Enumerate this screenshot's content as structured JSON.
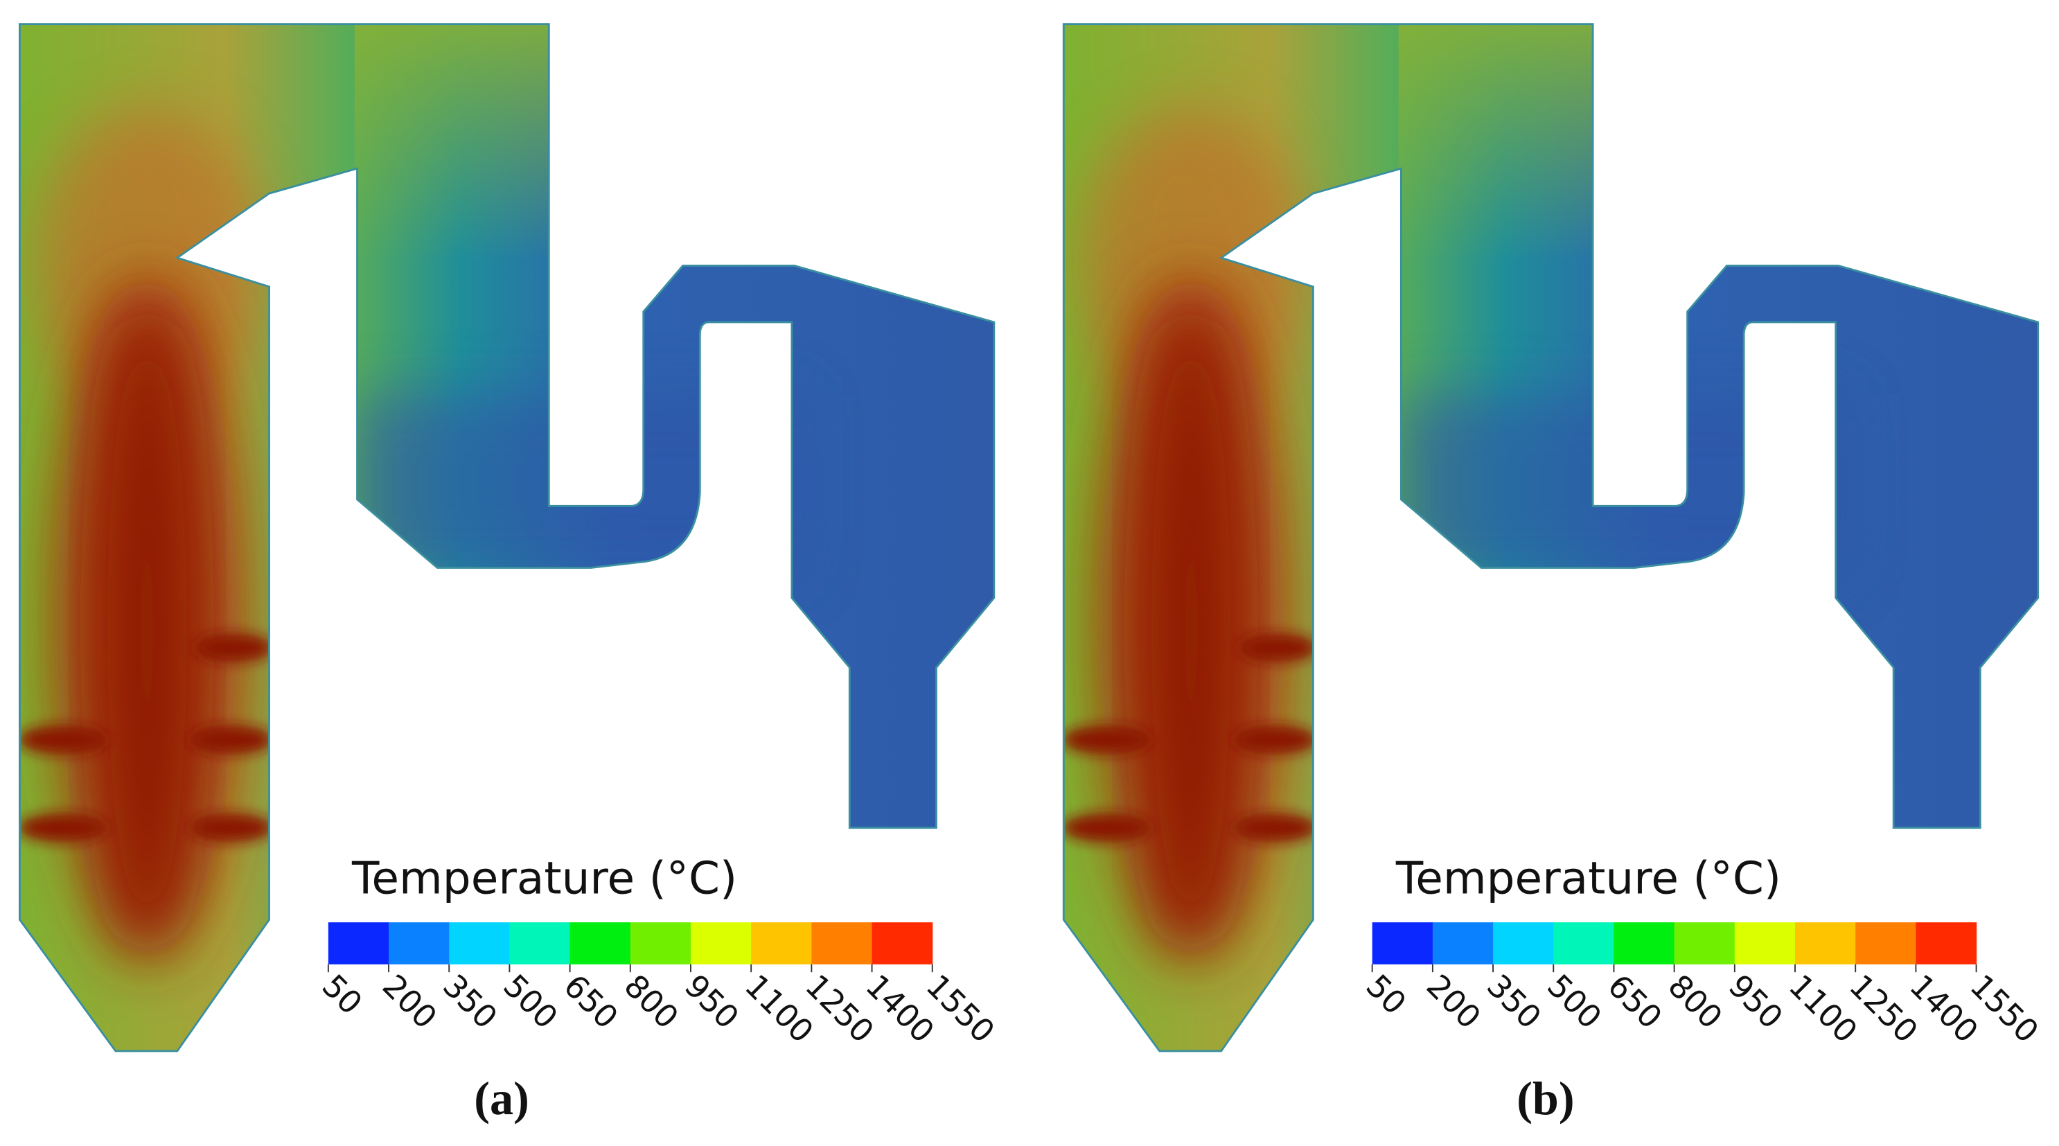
{
  "panels": [
    {
      "colorbar_title": "Temperature (°C)",
      "ticks": [
        50,
        200,
        350,
        500,
        650,
        800,
        950,
        1100,
        1250,
        1400,
        1550
      ],
      "caption": "(a)"
    },
    {
      "colorbar_title": "Temperature (°C)",
      "ticks": [
        50,
        200,
        350,
        500,
        650,
        800,
        950,
        1100,
        1250,
        1400,
        1550
      ],
      "caption": "(b)"
    }
  ],
  "colorbar_colors": [
    "#0a28ff",
    "#0a82ff",
    "#00d4ff",
    "#00f5b8",
    "#00ee10",
    "#70f000",
    "#dcff00",
    "#ffc400",
    "#ff8000",
    "#ff2a00"
  ]
}
